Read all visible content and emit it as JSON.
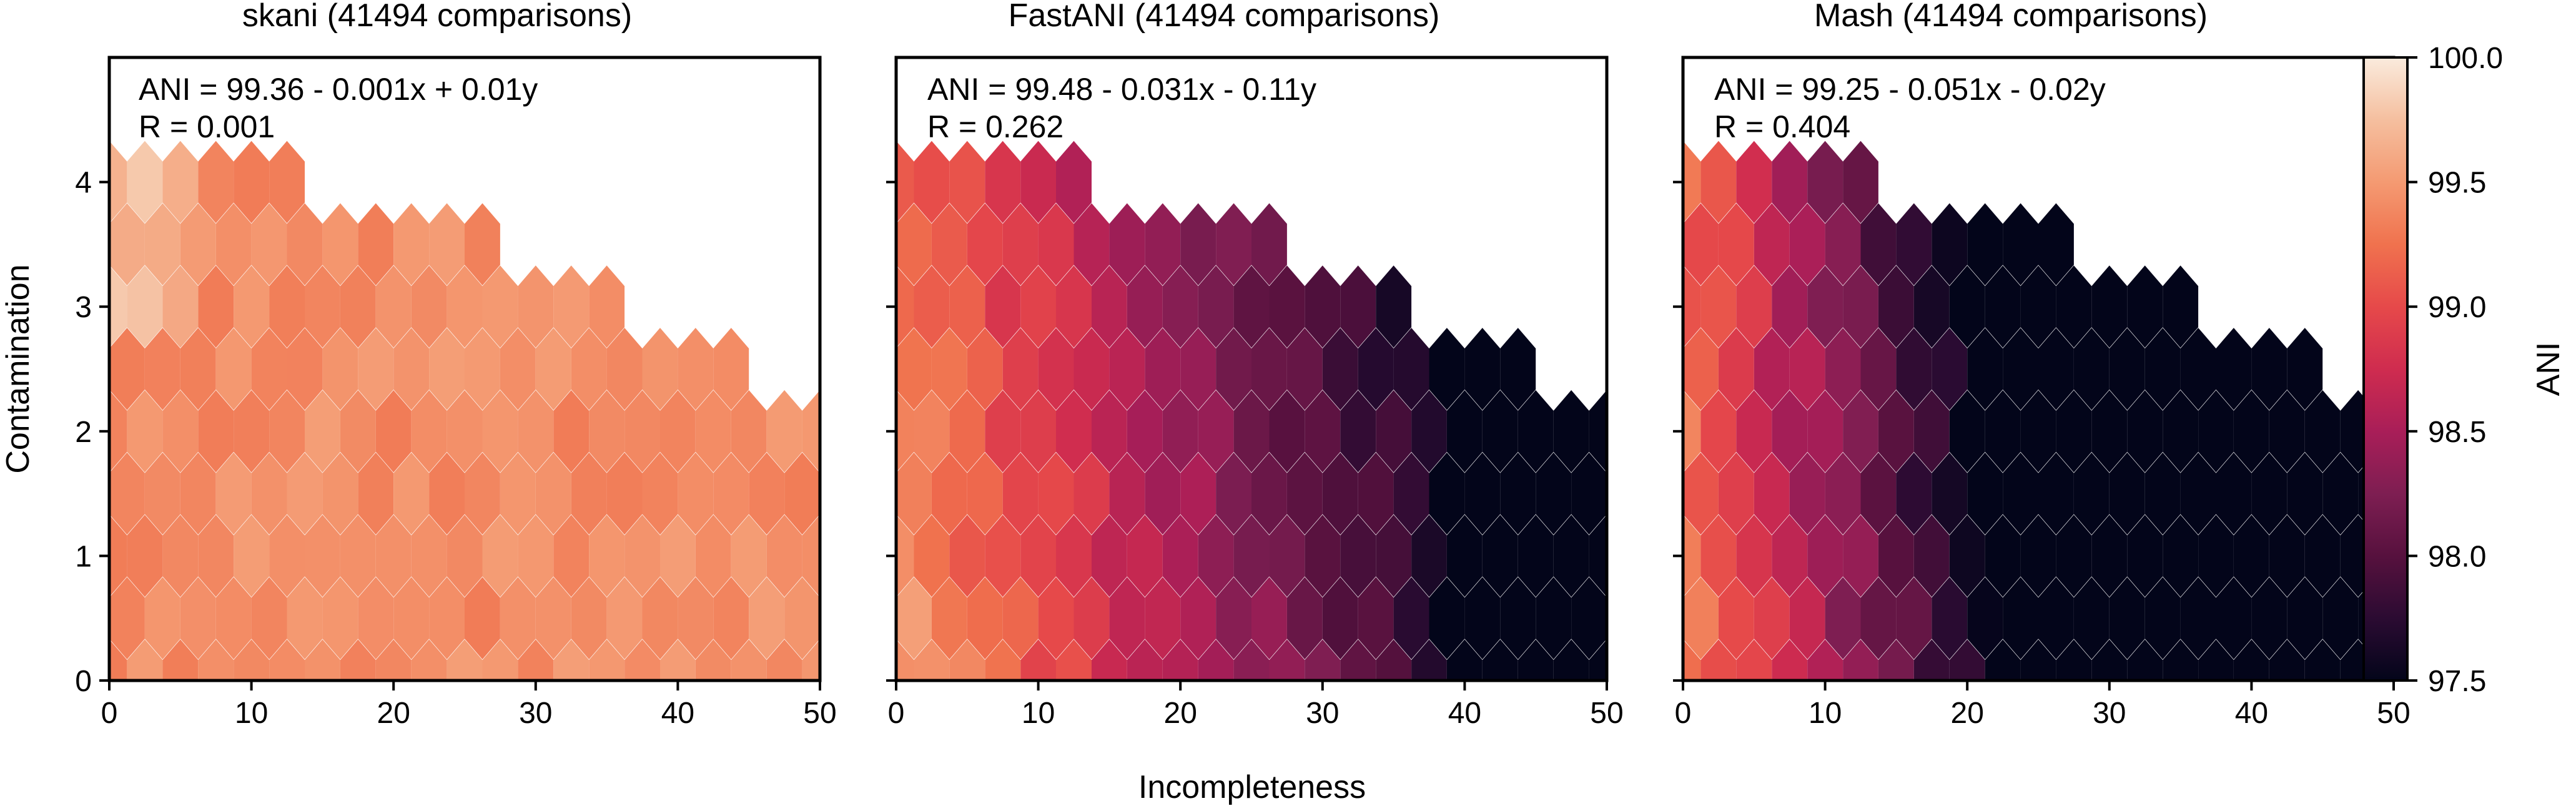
{
  "figure": {
    "xlabel": "Incompleteness",
    "ylabel": "Contamination",
    "x_ticks": [
      "0",
      "10",
      "20",
      "30",
      "40",
      "50"
    ],
    "y_ticks": [
      "0",
      "1",
      "2",
      "3",
      "4"
    ]
  },
  "panels": [
    {
      "title": "skani (41494 comparisons)",
      "equation": "ANI = 99.36 - 0.001x + 0.01y",
      "r_text": "R = 0.001"
    },
    {
      "title": "FastANI (41494 comparisons)",
      "equation": "ANI = 99.48 - 0.031x - 0.11y",
      "r_text": "R = 0.262"
    },
    {
      "title": "Mash (41494 comparisons)",
      "equation": "ANI = 99.25 - 0.051x - 0.02y",
      "r_text": "R = 0.404"
    }
  ],
  "colorbar": {
    "label": "ANI",
    "ticks": [
      "97.5",
      "98.0",
      "98.5",
      "99.0",
      "99.5",
      "100.0"
    ],
    "range": [
      97.5,
      100.0
    ],
    "colormap": "rocket",
    "stops": [
      "#03051a",
      "#2b0b32",
      "#57113e",
      "#7e1e52",
      "#a91e58",
      "#cf2c4f",
      "#e6494a",
      "#f0724e",
      "#f49a72",
      "#f5bf9f",
      "#faebdd"
    ]
  },
  "chart_data": [
    {
      "type": "heatmap",
      "subtype": "hexbin",
      "title": "skani (41494 comparisons)",
      "xlabel": "Incompleteness",
      "ylabel": "Contamination",
      "xlim": [
        0,
        50
      ],
      "ylim": [
        0,
        5
      ],
      "colorbar_label": "ANI",
      "colorbar_range": [
        97.5,
        100.0
      ],
      "fit": {
        "intercept": 99.36,
        "coef_x": -0.001,
        "coef_y": 0.01,
        "R": 0.001
      },
      "value_description": "ANI approximately uniform 99.3-99.6 across bins; highest (~99.8) at small incompleteness, contamination ~3-4.3",
      "x_bin_centers": [
        0,
        2.5,
        5,
        7.5,
        10,
        12.5,
        15,
        17.5,
        20,
        22.5,
        25,
        27.5,
        30,
        32.5,
        35,
        37.5,
        40,
        42.5,
        45,
        47.5,
        50
      ]
    },
    {
      "type": "heatmap",
      "subtype": "hexbin",
      "title": "FastANI (41494 comparisons)",
      "xlabel": "Incompleteness",
      "ylabel": "Contamination",
      "xlim": [
        0,
        50
      ],
      "ylim": [
        0,
        5
      ],
      "colorbar_label": "ANI",
      "colorbar_range": [
        97.5,
        100.0
      ],
      "fit": {
        "intercept": 99.48,
        "coef_x": -0.031,
        "coef_y": -0.11,
        "R": 0.262
      },
      "value_description": "ANI decreases from ~99.5 at low incompleteness to <97.6 above ~40 incompleteness; darker at high contamination",
      "x_bin_centers": [
        0,
        2.5,
        5,
        7.5,
        10,
        12.5,
        15,
        17.5,
        20,
        22.5,
        25,
        27.5,
        30,
        32.5,
        35,
        37.5,
        40,
        42.5,
        45,
        47.5,
        50
      ]
    },
    {
      "type": "heatmap",
      "subtype": "hexbin",
      "title": "Mash (41494 comparisons)",
      "xlabel": "Incompleteness",
      "ylabel": "Contamination",
      "xlim": [
        0,
        50
      ],
      "ylim": [
        0,
        5
      ],
      "colorbar_label": "ANI",
      "colorbar_range": [
        97.5,
        100.0
      ],
      "fit": {
        "intercept": 99.25,
        "coef_x": -0.051,
        "coef_y": -0.02,
        "R": 0.404
      },
      "value_description": "ANI decreases steeply from ~99.3 at low incompleteness to <97.5 beyond ~25 incompleteness",
      "x_bin_centers": [
        0,
        2.5,
        5,
        7.5,
        10,
        12.5,
        15,
        17.5,
        20,
        22.5,
        25,
        27.5,
        30,
        32.5,
        35,
        37.5,
        40,
        42.5,
        45,
        47.5,
        50
      ]
    }
  ]
}
